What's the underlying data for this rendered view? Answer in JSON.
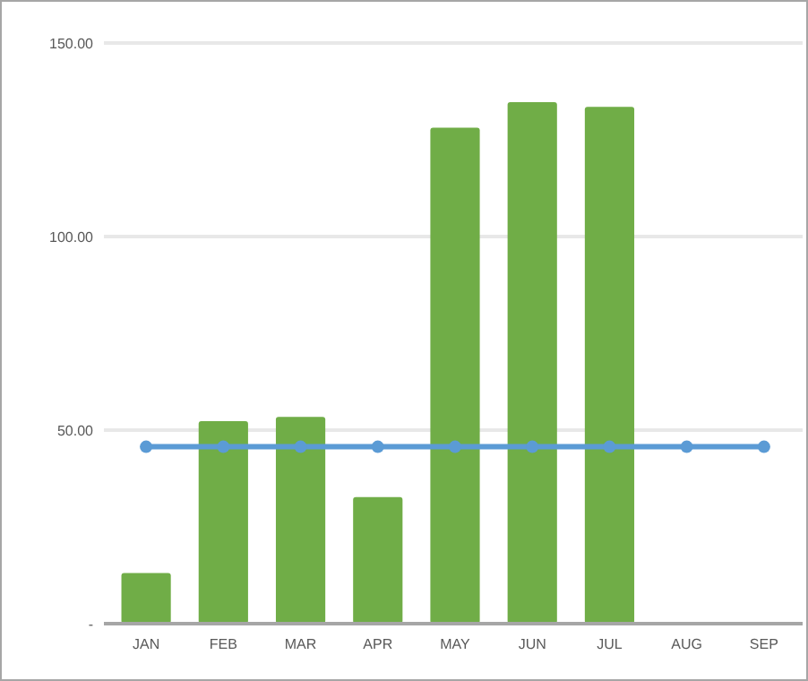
{
  "chart_data": {
    "type": "bar",
    "categories": [
      "JAN",
      "FEB",
      "MAR",
      "APR",
      "MAY",
      "JUN",
      "JUL",
      "AUG",
      "SEP"
    ],
    "series": [
      {
        "color": "#70ad47",
        "values": [
          13.1,
          52.3,
          53.4,
          32.7,
          128.1,
          134.7,
          133.5,
          null,
          null
        ]
      },
      {
        "type": "line",
        "color": "#5b9bd5",
        "marker": "circle",
        "values": [
          45.7,
          45.7,
          45.7,
          45.7,
          45.7,
          45.7,
          45.7,
          45.7,
          45.7
        ]
      }
    ],
    "ylim": [
      0,
      150
    ],
    "yticks": [
      {
        "value": 0,
        "label": "-"
      },
      {
        "value": 50,
        "label": "50.00"
      },
      {
        "value": 100,
        "label": "100.00"
      },
      {
        "value": 150,
        "label": "150.00"
      }
    ],
    "grid": "y"
  }
}
